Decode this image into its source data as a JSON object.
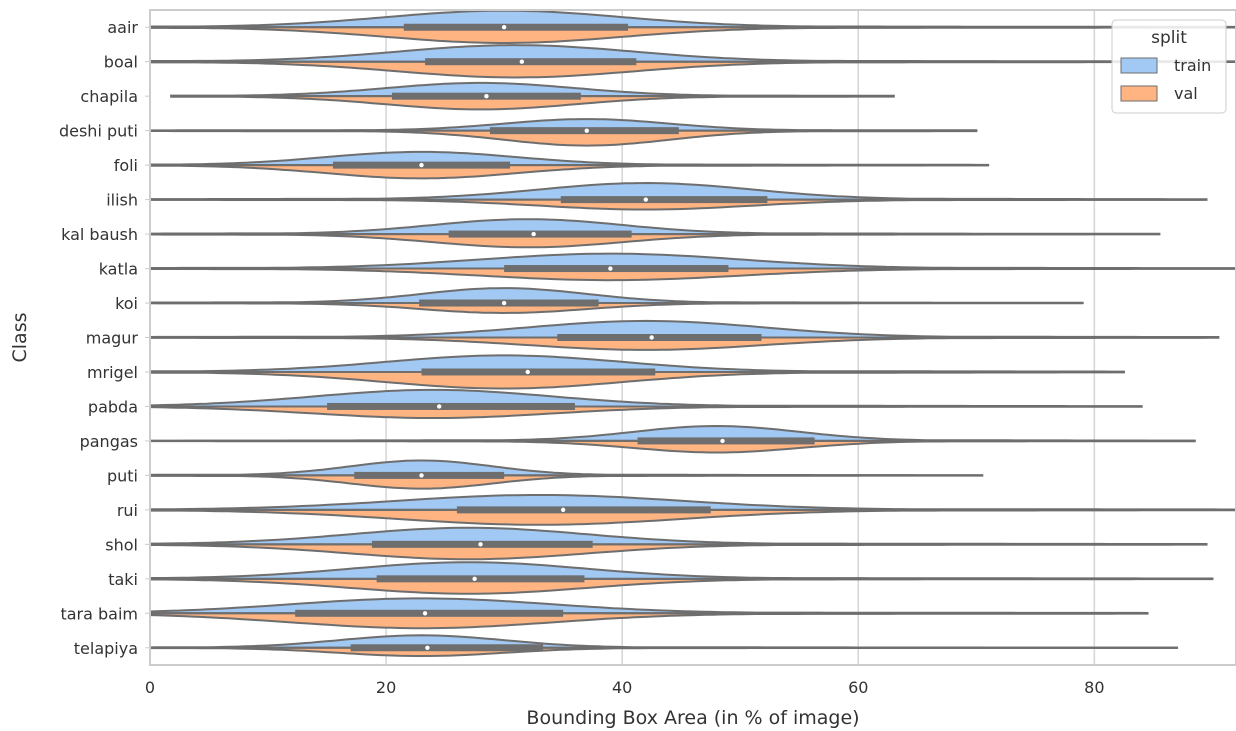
{
  "chart_data": {
    "type": "violin",
    "orientation": "horizontal",
    "split": true,
    "title": "",
    "xlabel": "Bounding Box Area (in % of image)",
    "ylabel": "Class",
    "xlim": [
      0,
      92
    ],
    "xticks": [
      0,
      20,
      40,
      60,
      80
    ],
    "grid": true,
    "legend": {
      "title": "split",
      "placement": "top-right",
      "entries": [
        {
          "name": "train",
          "color": "#a1c9f4"
        },
        {
          "name": "val",
          "color": "#ffb482"
        }
      ]
    },
    "colors": {
      "train": "#a1c9f4",
      "val": "#ffb482",
      "outline": "#6e6e6e",
      "box": "#6e6e6e",
      "median": "#ffffff",
      "grid": "#d5d5d5",
      "frame": "#cccccc"
    },
    "categories": [
      {
        "name": "aair",
        "min": 0,
        "max": 92,
        "q1": 21.5,
        "median": 30,
        "q3": 40.5,
        "mode": 30,
        "train_peak": 1.0,
        "val_peak": 0.95,
        "spread": 10
      },
      {
        "name": "boal",
        "min": 0,
        "max": 92,
        "q1": 23.3,
        "median": 31.5,
        "q3": 41.2,
        "mode": 31,
        "train_peak": 1.0,
        "val_peak": 0.95,
        "spread": 10
      },
      {
        "name": "chapila",
        "min": 1.8,
        "max": 63,
        "q1": 20.5,
        "median": 28.5,
        "q3": 36.5,
        "mode": 28,
        "train_peak": 0.8,
        "val_peak": 0.8,
        "spread": 8
      },
      {
        "name": "deshi puti",
        "min": 0,
        "max": 70,
        "q1": 28.8,
        "median": 37,
        "q3": 44.8,
        "mode": 37,
        "train_peak": 0.7,
        "val_peak": 0.9,
        "spread": 7
      },
      {
        "name": "foli",
        "min": 0,
        "max": 71,
        "q1": 15.5,
        "median": 23,
        "q3": 30.5,
        "mode": 23,
        "train_peak": 0.8,
        "val_peak": 0.8,
        "spread": 8
      },
      {
        "name": "ilish",
        "min": 0,
        "max": 89.5,
        "q1": 34.8,
        "median": 42,
        "q3": 52.3,
        "mode": 42,
        "train_peak": 1.0,
        "val_peak": 0.6,
        "spread": 9
      },
      {
        "name": "kal baush",
        "min": 0,
        "max": 85.5,
        "q1": 25.3,
        "median": 32.5,
        "q3": 40.8,
        "mode": 32,
        "train_peak": 0.9,
        "val_peak": 0.8,
        "spread": 8
      },
      {
        "name": "katla",
        "min": 0,
        "max": 92,
        "q1": 30,
        "median": 39,
        "q3": 49,
        "mode": 39,
        "train_peak": 0.9,
        "val_peak": 0.7,
        "spread": 11
      },
      {
        "name": "koi",
        "min": 0,
        "max": 79,
        "q1": 22.8,
        "median": 30,
        "q3": 38,
        "mode": 30,
        "train_peak": 0.9,
        "val_peak": 0.6,
        "spread": 7
      },
      {
        "name": "magur",
        "min": 0,
        "max": 90.5,
        "q1": 34.5,
        "median": 42.5,
        "q3": 51.8,
        "mode": 42,
        "train_peak": 1.0,
        "val_peak": 0.75,
        "spread": 10
      },
      {
        "name": "mrigel",
        "min": 0,
        "max": 82.5,
        "q1": 23,
        "median": 32,
        "q3": 42.8,
        "mode": 30,
        "train_peak": 1.0,
        "val_peak": 1.0,
        "spread": 10
      },
      {
        "name": "pabda",
        "min": 0,
        "max": 84,
        "q1": 15,
        "median": 24.5,
        "q3": 36,
        "mode": 24,
        "train_peak": 1.0,
        "val_peak": 0.7,
        "spread": 10
      },
      {
        "name": "pangas",
        "min": 0,
        "max": 88.5,
        "q1": 41.3,
        "median": 48.5,
        "q3": 56.3,
        "mode": 48,
        "train_peak": 0.9,
        "val_peak": 0.7,
        "spread": 7
      },
      {
        "name": "puti",
        "min": 0,
        "max": 70.5,
        "q1": 17.3,
        "median": 23,
        "q3": 30,
        "mode": 23,
        "train_peak": 0.9,
        "val_peak": 0.8,
        "spread": 6
      },
      {
        "name": "rui",
        "min": 0,
        "max": 92,
        "q1": 26,
        "median": 35,
        "q3": 47.5,
        "mode": 33,
        "train_peak": 0.9,
        "val_peak": 0.9,
        "spread": 12
      },
      {
        "name": "shol",
        "min": 0,
        "max": 89.5,
        "q1": 18.8,
        "median": 28,
        "q3": 37.5,
        "mode": 27,
        "train_peak": 1.0,
        "val_peak": 0.9,
        "spread": 10
      },
      {
        "name": "taki",
        "min": 0,
        "max": 90,
        "q1": 19.2,
        "median": 27.5,
        "q3": 36.8,
        "mode": 27,
        "train_peak": 1.0,
        "val_peak": 0.9,
        "spread": 10
      },
      {
        "name": "tara baim",
        "min": 0,
        "max": 84.5,
        "q1": 12.3,
        "median": 23.3,
        "q3": 35,
        "mode": 23,
        "train_peak": 0.9,
        "val_peak": 0.9,
        "spread": 11
      },
      {
        "name": "telapiya",
        "min": 0,
        "max": 87,
        "q1": 17,
        "median": 23.5,
        "q3": 33.3,
        "mode": 23,
        "train_peak": 0.75,
        "val_peak": 0.5,
        "spread": 7
      }
    ]
  }
}
